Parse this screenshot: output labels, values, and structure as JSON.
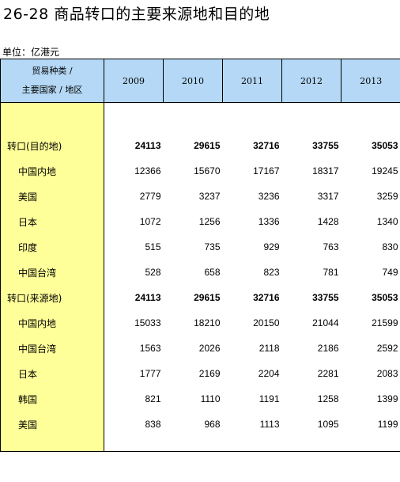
{
  "title": "26-28  商品转口的主要来源地和目的地",
  "unit": "单位：亿港元",
  "table": {
    "header_line1": "贸易种类 /",
    "header_line2": "主要国家 / 地区",
    "years": [
      "2009",
      "2010",
      "2011",
      "2012",
      "2013"
    ],
    "rows": [
      {
        "label": "转口(目的地)",
        "type": "total",
        "values": [
          "24113",
          "29615",
          "32716",
          "33755",
          "35053"
        ]
      },
      {
        "label": "中国内地",
        "type": "sub",
        "values": [
          "12366",
          "15670",
          "17167",
          "18317",
          "19245"
        ]
      },
      {
        "label": "美国",
        "type": "sub",
        "values": [
          "2779",
          "3237",
          "3236",
          "3317",
          "3259"
        ]
      },
      {
        "label": "日本",
        "type": "sub",
        "values": [
          "1072",
          "1256",
          "1336",
          "1428",
          "1340"
        ]
      },
      {
        "label": "印度",
        "type": "sub",
        "values": [
          "515",
          "735",
          "929",
          "763",
          "830"
        ]
      },
      {
        "label": "中国台湾",
        "type": "sub",
        "values": [
          "528",
          "658",
          "823",
          "781",
          "749"
        ]
      },
      {
        "label": "转口(来源地)",
        "type": "total",
        "values": [
          "24113",
          "29615",
          "32716",
          "33755",
          "35053"
        ]
      },
      {
        "label": "中国内地",
        "type": "sub",
        "values": [
          "15033",
          "18210",
          "20150",
          "21044",
          "21599"
        ]
      },
      {
        "label": "中国台湾",
        "type": "sub",
        "values": [
          "1563",
          "2026",
          "2118",
          "2186",
          "2592"
        ]
      },
      {
        "label": "日本",
        "type": "sub",
        "values": [
          "1777",
          "2169",
          "2204",
          "2281",
          "2083"
        ]
      },
      {
        "label": "韩国",
        "type": "sub",
        "values": [
          "821",
          "1110",
          "1191",
          "1258",
          "1399"
        ]
      },
      {
        "label": "美国",
        "type": "sub",
        "values": [
          "838",
          "968",
          "1113",
          "1095",
          "1199"
        ]
      }
    ]
  },
  "colors": {
    "header_bg": "#b4d8f5",
    "label_column_bg": "#ffff99"
  }
}
